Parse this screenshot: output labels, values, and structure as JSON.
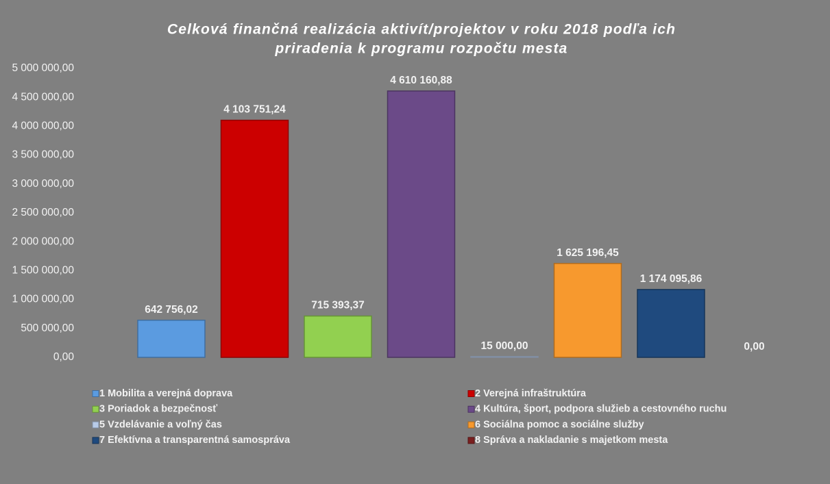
{
  "chart_data": {
    "type": "bar",
    "title": [
      "Celková finančná realizácia aktivít/projektov v roku 2018 podľa ich",
      "priradenia k programu rozpočtu mesta"
    ],
    "categories": [
      "1 Mobilita a verejná doprava",
      "2 Verejná infraštruktúra",
      "3 Poriadok a bezpečnosť",
      "4 Kultúra, šport, podpora služieb a cestovného ruchu",
      "5 Vzdelávanie a voľný čas",
      "6 Sociálna pomoc a sociálne služby",
      "7 Efektívna a transparentná samospráva",
      "8 Správa a nakladanie s majetkom mesta"
    ],
    "values": [
      642756.02,
      4103751.24,
      715393.37,
      4610160.88,
      15000,
      1625196.45,
      1174095.86,
      0
    ],
    "value_labels": [
      "642 756,02",
      "4 103 751,24",
      "715 393,37",
      "4 610 160,88",
      "15 000,00",
      "1 625 196,45",
      "1 174 095,86",
      "0,00"
    ],
    "colors": [
      "#5b9be0",
      "#cc0000",
      "#92d050",
      "#6b4a88",
      "#b8cbe8",
      "#f7992e",
      "#1f4a7e",
      "#7a1f1f"
    ],
    "ylim": [
      0,
      5000000
    ],
    "yticks": [
      {
        "value": 0,
        "label": "0,00"
      },
      {
        "value": 500000,
        "label": "500 000,00"
      },
      {
        "value": 1000000,
        "label": "1 000 000,00"
      },
      {
        "value": 1500000,
        "label": "1 500 000,00"
      },
      {
        "value": 2000000,
        "label": "2 000 000,00"
      },
      {
        "value": 2500000,
        "label": "2 500 000,00"
      },
      {
        "value": 3000000,
        "label": "3 000 000,00"
      },
      {
        "value": 3500000,
        "label": "3 500 000,00"
      },
      {
        "value": 4000000,
        "label": "4 000 000,00"
      },
      {
        "value": 4500000,
        "label": "4 500 000,00"
      },
      {
        "value": 5000000,
        "label": "5 000 000,00"
      }
    ],
    "grid": false,
    "legend": "bottom"
  }
}
